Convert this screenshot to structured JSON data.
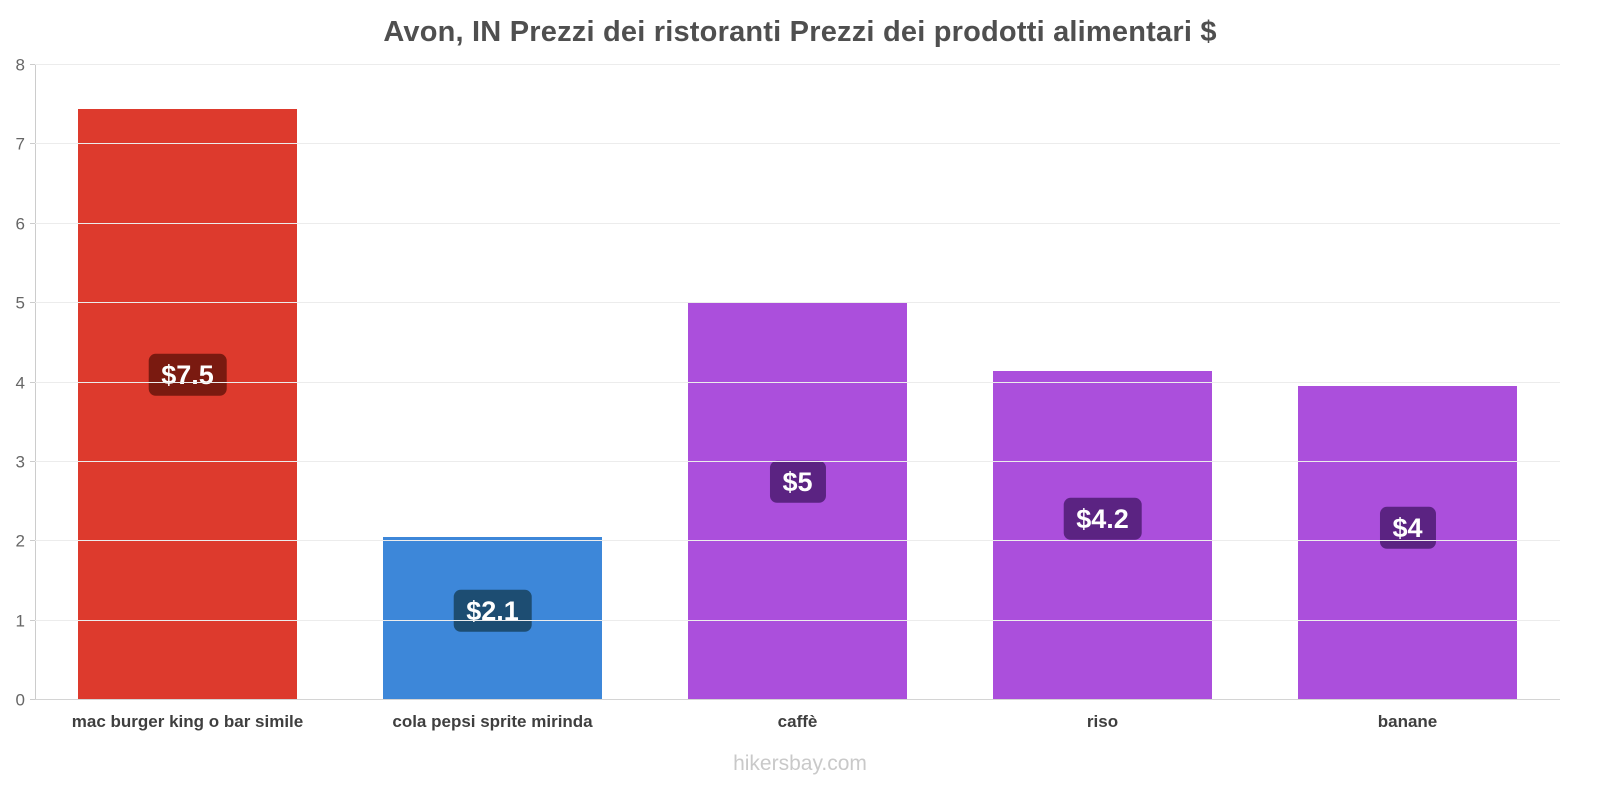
{
  "title": "Avon, IN Prezzi dei ristoranti Prezzi dei prodotti alimentari $",
  "footer": "hikersbay.com",
  "chart_data": {
    "type": "bar",
    "title": "Avon, IN Prezzi dei ristoranti Prezzi dei prodotti alimentari $",
    "categories": [
      "mac burger king o bar simile",
      "cola pepsi sprite mirinda",
      "caffè",
      "riso",
      "banane"
    ],
    "values": [
      7.45,
      2.05,
      5.0,
      4.15,
      3.95
    ],
    "value_labels": [
      "$7.5",
      "$2.1",
      "$5",
      "$4.2",
      "$4"
    ],
    "bar_colors": [
      "#dd3a2d",
      "#3d87d9",
      "#ab4fdc",
      "#ab4fdc",
      "#ab4fdc"
    ],
    "badge_colors": [
      "#7a1a10",
      "#1d4d72",
      "#5b2382",
      "#5b2382",
      "#5b2382"
    ],
    "xlabel": "",
    "ylabel": "",
    "ylim": [
      0,
      8
    ],
    "yticks": [
      0,
      1,
      2,
      3,
      4,
      5,
      6,
      7,
      8
    ],
    "grid": true,
    "legend": false,
    "currency": "$"
  }
}
